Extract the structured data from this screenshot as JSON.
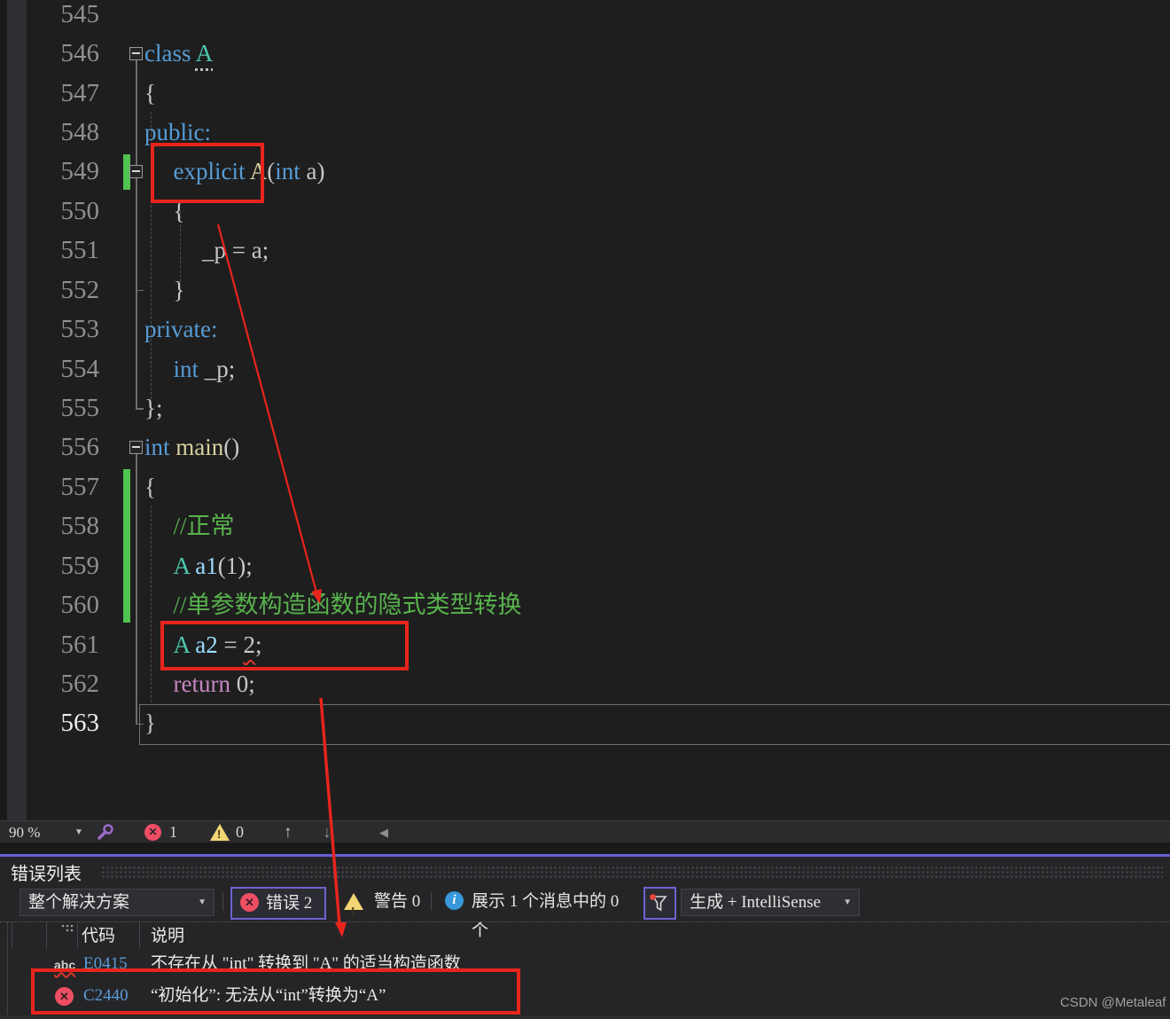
{
  "colors": {
    "annotation_red": "#e8251d",
    "accent_purple": "#6c63d2",
    "error_red": "#ee4e63",
    "warning_yellow": "#f2d675",
    "info_blue": "#3898d9",
    "change_bar_green": "#4fc24f",
    "keyword_blue": "#569cd6",
    "type_teal": "#4ec9b0",
    "comment_green": "#58b24d"
  },
  "editor": {
    "lines": [
      {
        "num": "545",
        "indent": 0,
        "tokens": []
      },
      {
        "num": "546",
        "fold": true,
        "indent": 0,
        "tokens": [
          {
            "t": "class ",
            "c": "kw"
          },
          {
            "t": "A",
            "c": "type",
            "u": true
          }
        ]
      },
      {
        "num": "547",
        "indent": 0,
        "tokens": [
          {
            "t": "{",
            "c": "plain"
          }
        ]
      },
      {
        "num": "548",
        "indent": 0,
        "tokens": [
          {
            "t": "public:",
            "c": "kw"
          }
        ]
      },
      {
        "num": "549",
        "fold": true,
        "indent": 1,
        "tokens": [
          {
            "t": "explicit",
            "c": "kw"
          },
          {
            "t": " ",
            "c": "plain"
          },
          {
            "t": "A",
            "c": "fn"
          },
          {
            "t": "(",
            "c": "plain"
          },
          {
            "t": "int",
            "c": "kw"
          },
          {
            "t": " a)",
            "c": "plain"
          }
        ]
      },
      {
        "num": "550",
        "indent": 1,
        "tokens": [
          {
            "t": "{",
            "c": "plain"
          }
        ]
      },
      {
        "num": "551",
        "indent": 2,
        "tokens": [
          {
            "t": "_p = a;",
            "c": "plain"
          }
        ]
      },
      {
        "num": "552",
        "indent": 1,
        "tokens": [
          {
            "t": "}",
            "c": "plain"
          }
        ]
      },
      {
        "num": "553",
        "indent": 0,
        "tokens": [
          {
            "t": "private:",
            "c": "kw"
          }
        ]
      },
      {
        "num": "554",
        "indent": 1,
        "tokens": [
          {
            "t": "int",
            "c": "kw"
          },
          {
            "t": " _p;",
            "c": "plain"
          }
        ]
      },
      {
        "num": "555",
        "indent": 0,
        "tokens": [
          {
            "t": "};",
            "c": "plain"
          }
        ]
      },
      {
        "num": "556",
        "fold": true,
        "indent": 0,
        "tokens": [
          {
            "t": "int",
            "c": "kw"
          },
          {
            "t": " ",
            "c": "plain"
          },
          {
            "t": "main",
            "c": "fn"
          },
          {
            "t": "()",
            "c": "plain"
          }
        ]
      },
      {
        "num": "557",
        "indent": 0,
        "tokens": [
          {
            "t": "{",
            "c": "plain"
          }
        ]
      },
      {
        "num": "558",
        "indent": 1,
        "tokens": [
          {
            "t": "//正常",
            "c": "comment"
          }
        ]
      },
      {
        "num": "559",
        "indent": 1,
        "tokens": [
          {
            "t": "A",
            "c": "type"
          },
          {
            "t": " ",
            "c": "plain"
          },
          {
            "t": "a1",
            "c": "var"
          },
          {
            "t": "(1);",
            "c": "plain"
          }
        ]
      },
      {
        "num": "560",
        "indent": 1,
        "tokens": [
          {
            "t": "//单参数构造函数的隐式类型转换",
            "c": "comment"
          }
        ]
      },
      {
        "num": "561",
        "indent": 1,
        "tokens": [
          {
            "t": "A",
            "c": "type"
          },
          {
            "t": " ",
            "c": "plain"
          },
          {
            "t": "a2",
            "c": "var"
          },
          {
            "t": " = ",
            "c": "plain"
          },
          {
            "t": "2",
            "c": "plain",
            "sq": true
          },
          {
            "t": ";",
            "c": "plain"
          }
        ]
      },
      {
        "num": "562",
        "indent": 1,
        "tokens": [
          {
            "t": "return",
            "c": "ctrl"
          },
          {
            "t": " 0;",
            "c": "plain"
          }
        ]
      },
      {
        "num": "563",
        "current": true,
        "indent": 0,
        "tokens": [
          {
            "t": "}",
            "c": "plain"
          }
        ]
      }
    ],
    "fold_scopes": [
      {
        "from": 546,
        "to": 555
      },
      {
        "from": 549,
        "to": 552
      },
      {
        "from": 556,
        "to": 563
      }
    ],
    "change_bars": [
      {
        "from": 549,
        "to": 549
      },
      {
        "from": 557,
        "to": 560
      }
    ]
  },
  "status_bar": {
    "zoom_level": "90 %",
    "error_count": "1",
    "warning_count": "0",
    "error_badge_glyph": "✕",
    "warning_glyph": "!",
    "nav_up_glyph": "↑",
    "nav_down_glyph": "↓",
    "scroll_left_glyph": "◀"
  },
  "error_list": {
    "title": "错误列表",
    "scope_dropdown": "整个解决方案",
    "errors_button": "错误 2",
    "warnings_button": "警告 0",
    "messages_button": "展示 1 个消息中的 0 个",
    "source_dropdown": "生成 + IntelliSense",
    "columns": {
      "code": "代码",
      "description": "说明"
    },
    "rows": [
      {
        "icon": "intellisense-squiggle",
        "icon_text": "abc",
        "code": "E0415",
        "description": "不存在从 \"int\" 转换到 \"A\" 的适当构造函数"
      },
      {
        "icon": "error-circle",
        "icon_text": "✕",
        "code": "C2440",
        "description": "“初始化”: 无法从“int”转换为“A”"
      }
    ]
  },
  "watermark": "CSDN @Metaleaf"
}
